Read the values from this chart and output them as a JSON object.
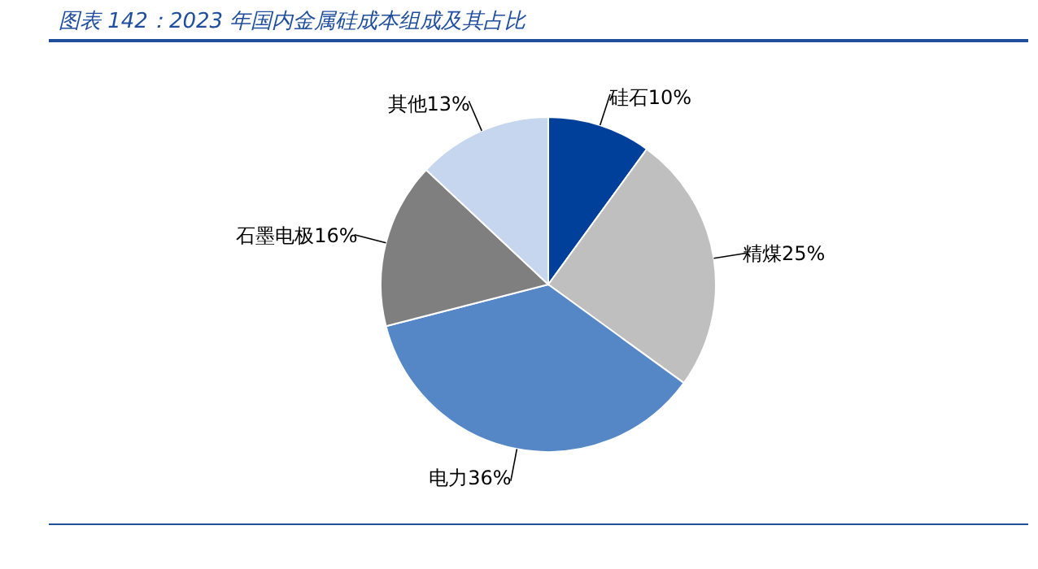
{
  "chart_data": {
    "type": "pie",
    "title": "图表 142：2023 年国内金属硅成本组成及其占比",
    "categories": [
      "硅石",
      "精煤",
      "电力",
      "石墨电极",
      "其他"
    ],
    "values": [
      10,
      25,
      36,
      16,
      13
    ],
    "value_labels": [
      "10%",
      "25%",
      "36%",
      "16%",
      "13%"
    ],
    "colors": [
      "#003f9a",
      "#bfbfbf",
      "#5587c7",
      "#7f7f7f",
      "#c6d6ee"
    ],
    "legend": false
  }
}
